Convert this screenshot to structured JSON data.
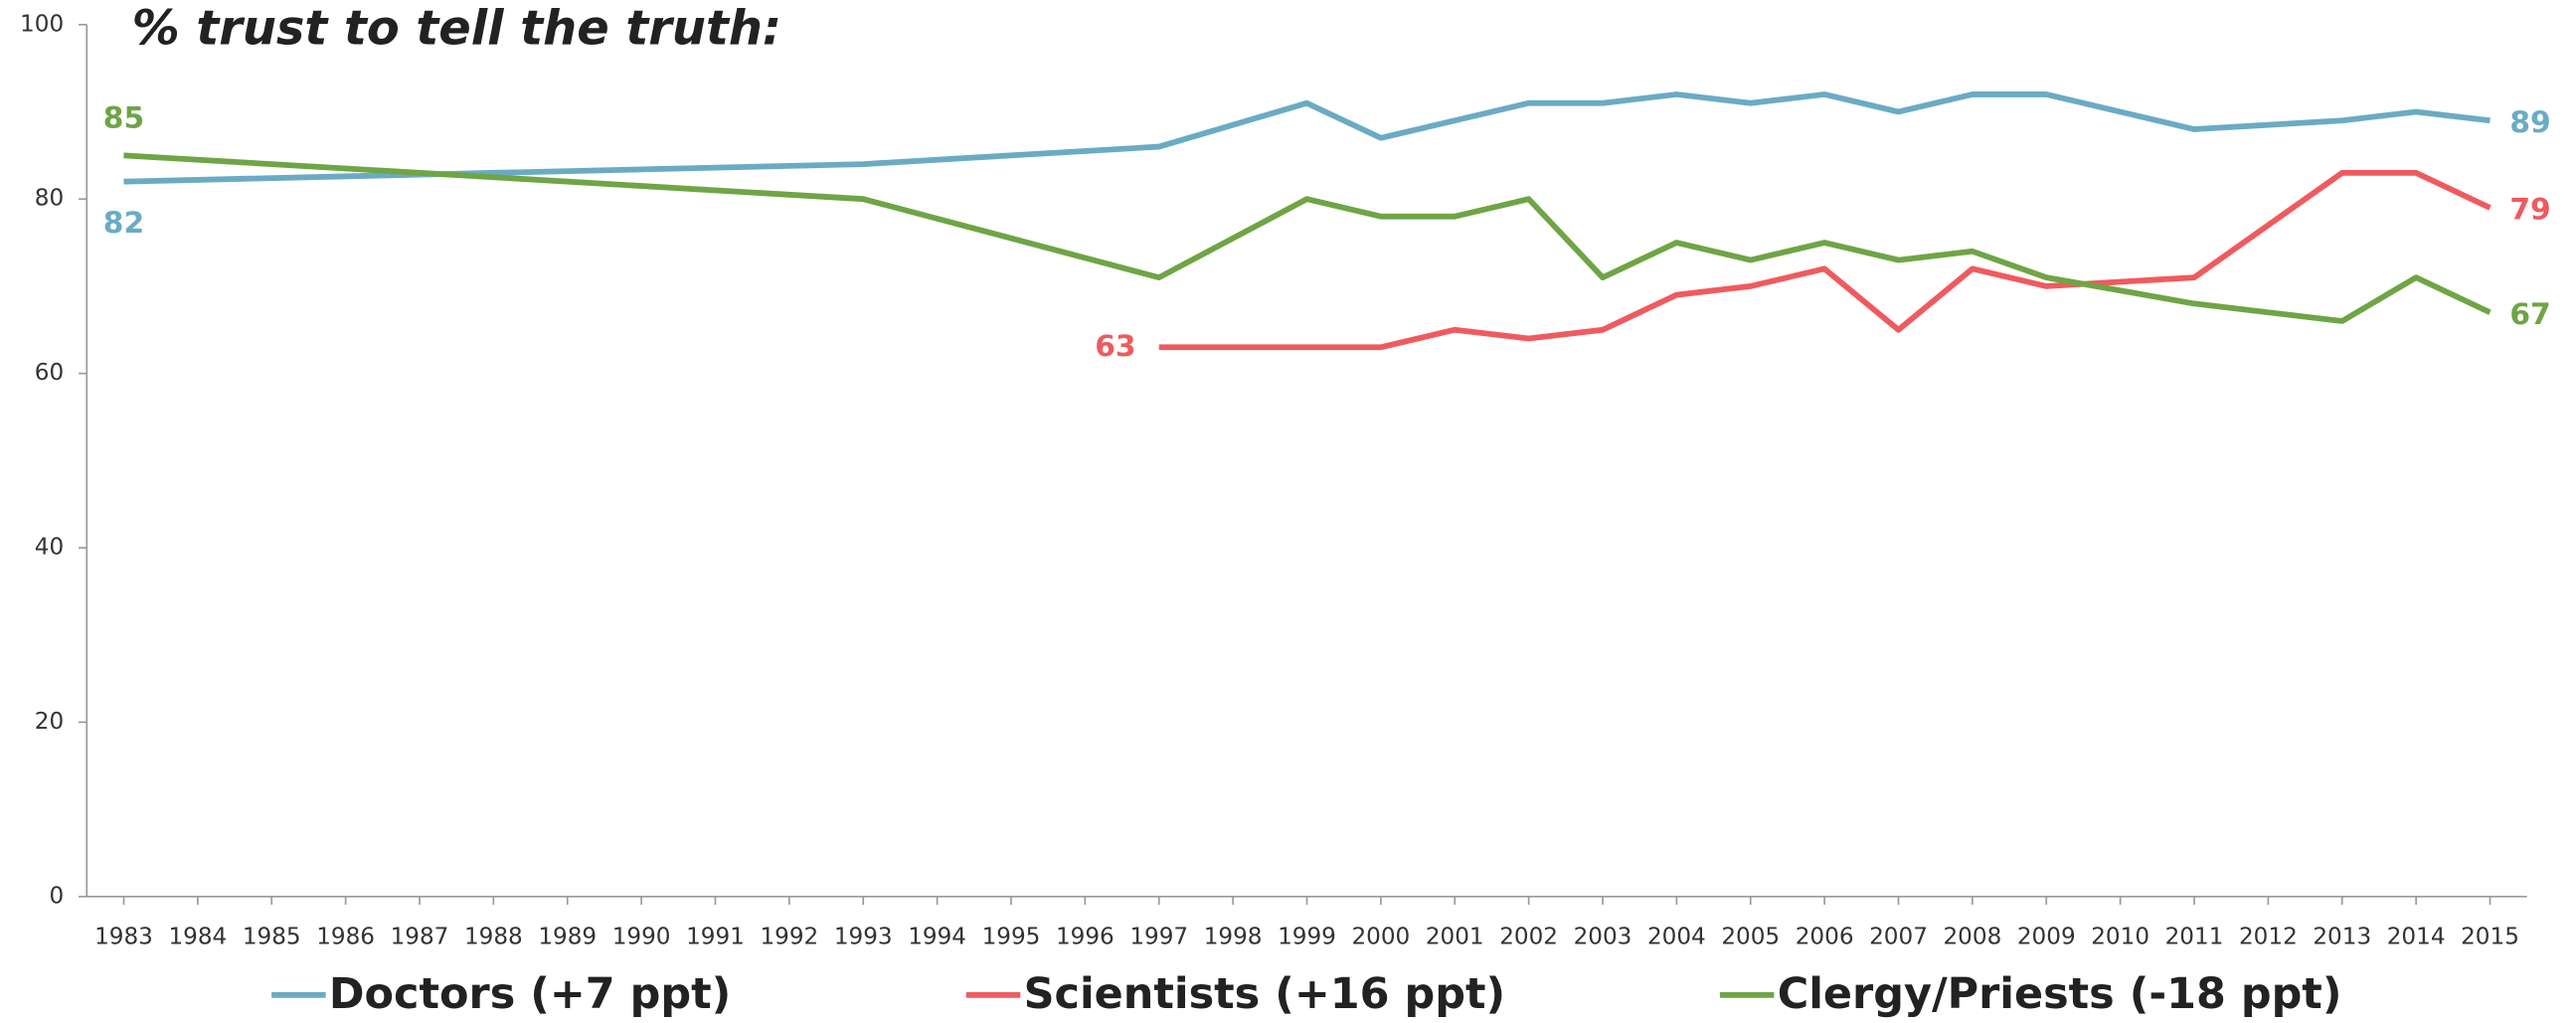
{
  "chart_data": {
    "type": "line",
    "title": "% trust to tell the truth:",
    "xlim": [
      1982.5,
      2015.5
    ],
    "xticks": [
      1983,
      1984,
      1985,
      1986,
      1987,
      1988,
      1989,
      1990,
      1991,
      1992,
      1993,
      1994,
      1995,
      1996,
      1997,
      1998,
      1999,
      2000,
      2001,
      2002,
      2003,
      2004,
      2005,
      2006,
      2007,
      2008,
      2009,
      2010,
      2011,
      2012,
      2013,
      2014,
      2015
    ],
    "ylim": [
      0,
      100
    ],
    "yticks": [
      0,
      20,
      40,
      60,
      80,
      100
    ],
    "series": [
      {
        "name": "Doctors (+7 ppt)",
        "color": "#6aabc4",
        "x": [
          1983,
          1993,
          1997,
          1999,
          2000,
          2002,
          2003,
          2004,
          2005,
          2006,
          2007,
          2008,
          2009,
          2011,
          2013,
          2014,
          2015
        ],
        "values": [
          82,
          84,
          86,
          91,
          87,
          91,
          91,
          92,
          91,
          92,
          90,
          92,
          92,
          88,
          89,
          90,
          89
        ]
      },
      {
        "name": "Scientists (+16 ppt)",
        "color": "#f05a5f",
        "x": [
          1997,
          1999,
          2000,
          2001,
          2002,
          2003,
          2004,
          2005,
          2006,
          2007,
          2008,
          2009,
          2011,
          2013,
          2014,
          2015
        ],
        "values": [
          63,
          63,
          63,
          65,
          64,
          65,
          69,
          70,
          72,
          65,
          72,
          70,
          71,
          83,
          83,
          79
        ]
      },
      {
        "name": "Clergy/Priests (-18 ppt)",
        "color": "#6ea545",
        "x": [
          1983,
          1993,
          1997,
          1999,
          2000,
          2001,
          2002,
          2003,
          2004,
          2005,
          2006,
          2007,
          2008,
          2009,
          2011,
          2013,
          2014,
          2015
        ],
        "values": [
          85,
          80,
          71,
          80,
          78,
          78,
          80,
          71,
          75,
          73,
          75,
          73,
          74,
          71,
          68,
          66,
          71,
          67
        ]
      }
    ]
  }
}
